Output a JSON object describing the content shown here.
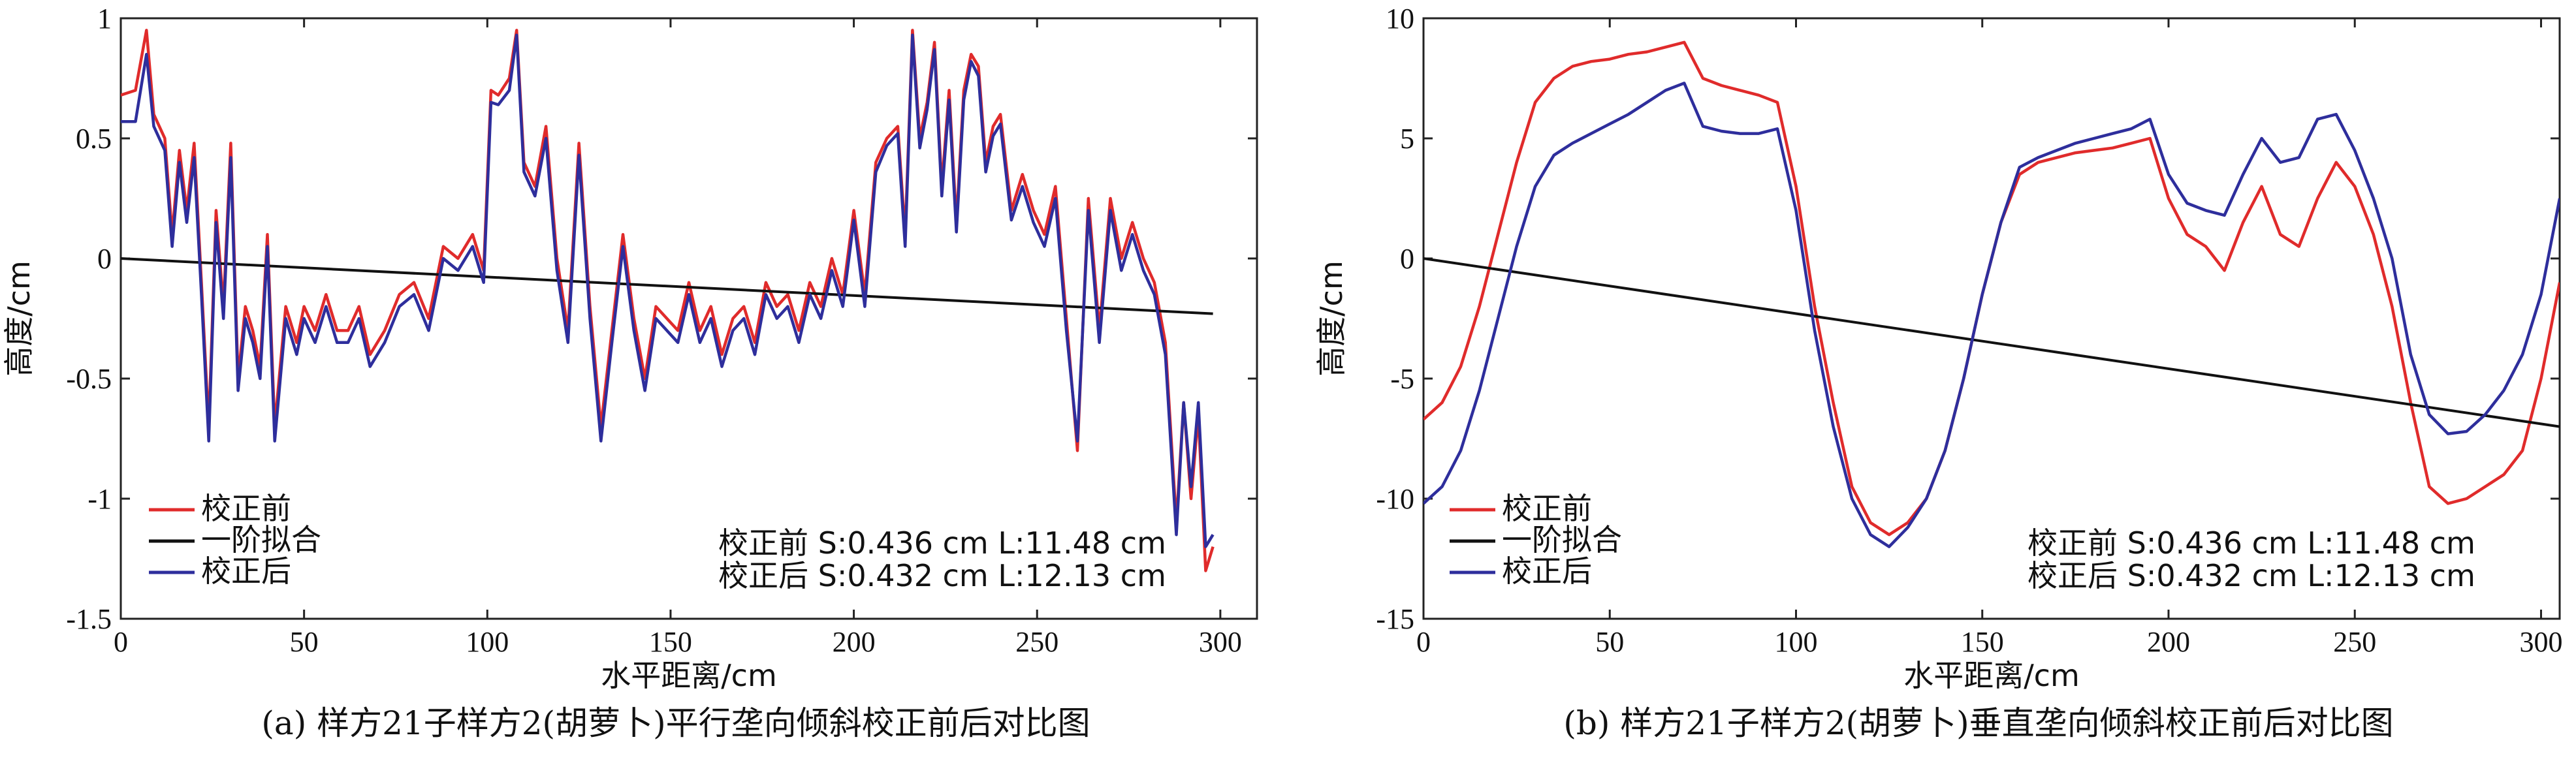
{
  "chart_data": [
    {
      "type": "line",
      "caption": "(a) 样方21子样方2(胡萝卜)平行垄向倾斜校正前后对比图",
      "xlabel": "水平距离/cm",
      "ylabel": "高度/cm",
      "xlim": [
        0,
        310
      ],
      "ylim": [
        -1.5,
        1
      ],
      "xticks": [
        0,
        50,
        100,
        150,
        200,
        250,
        300
      ],
      "yticks": [
        -1.5,
        -1,
        -0.5,
        0,
        0.5,
        1
      ],
      "xtick_labels": [
        "0",
        "50",
        "100",
        "150",
        "200",
        "250",
        "300"
      ],
      "ytick_labels": [
        "-1.5",
        "-1",
        "-0.5",
        "0",
        "0.5",
        "1"
      ],
      "legend_position": "bottom-left",
      "stats": [
        "校正前 S:0.436 cm L:11.48 cm",
        "校正后 S:0.432 cm L:12.13 cm"
      ],
      "series": [
        {
          "name": "校正前",
          "color": "#e02b2b",
          "x": [
            0,
            4,
            7,
            9,
            12,
            14,
            16,
            18,
            20,
            22,
            24,
            26,
            28,
            30,
            32,
            34,
            36,
            38,
            40,
            42,
            45,
            48,
            50,
            53,
            56,
            59,
            62,
            65,
            68,
            72,
            76,
            80,
            84,
            88,
            92,
            96,
            99,
            101,
            103,
            106,
            108,
            110,
            113,
            116,
            119,
            122,
            125,
            128,
            131,
            134,
            137,
            140,
            143,
            146,
            149,
            152,
            155,
            158,
            161,
            164,
            167,
            170,
            173,
            176,
            179,
            182,
            185,
            188,
            191,
            194,
            197,
            200,
            203,
            206,
            209,
            212,
            214,
            216,
            218,
            220,
            222,
            224,
            226,
            228,
            230,
            232,
            234,
            236,
            238,
            240,
            243,
            246,
            249,
            252,
            255,
            258,
            261,
            264,
            267,
            270,
            273,
            276,
            279,
            282,
            285,
            288,
            290,
            292,
            294,
            296,
            298
          ],
          "y": [
            0.68,
            0.7,
            0.95,
            0.6,
            0.5,
            0.1,
            0.45,
            0.2,
            0.48,
            -0.1,
            -0.7,
            0.2,
            -0.2,
            0.48,
            -0.5,
            -0.2,
            -0.3,
            -0.45,
            0.1,
            -0.7,
            -0.2,
            -0.35,
            -0.2,
            -0.3,
            -0.15,
            -0.3,
            -0.3,
            -0.2,
            -0.4,
            -0.3,
            -0.15,
            -0.1,
            -0.25,
            0.05,
            0.0,
            0.1,
            -0.05,
            0.7,
            0.68,
            0.75,
            0.95,
            0.4,
            0.3,
            0.55,
            0.0,
            -0.3,
            0.48,
            -0.2,
            -0.7,
            -0.3,
            0.1,
            -0.25,
            -0.5,
            -0.2,
            -0.25,
            -0.3,
            -0.1,
            -0.3,
            -0.2,
            -0.4,
            -0.25,
            -0.2,
            -0.35,
            -0.1,
            -0.2,
            -0.15,
            -0.3,
            -0.1,
            -0.2,
            0.0,
            -0.15,
            0.2,
            -0.15,
            0.4,
            0.5,
            0.55,
            0.1,
            0.95,
            0.5,
            0.65,
            0.9,
            0.3,
            0.7,
            0.15,
            0.7,
            0.85,
            0.8,
            0.4,
            0.55,
            0.6,
            0.2,
            0.35,
            0.2,
            0.1,
            0.3,
            -0.25,
            -0.8,
            0.25,
            -0.3,
            0.25,
            0.0,
            0.15,
            0.0,
            -0.1,
            -0.35,
            -1.1,
            -0.6,
            -1.0,
            -0.65,
            -1.3,
            -1.2
          ]
        },
        {
          "name": "一阶拟合",
          "color": "#111111",
          "x": [
            0,
            298
          ],
          "y": [
            0,
            -0.23
          ]
        },
        {
          "name": "校正后",
          "color": "#2e2e9c",
          "x": [
            0,
            4,
            7,
            9,
            12,
            14,
            16,
            18,
            20,
            22,
            24,
            26,
            28,
            30,
            32,
            34,
            36,
            38,
            40,
            42,
            45,
            48,
            50,
            53,
            56,
            59,
            62,
            65,
            68,
            72,
            76,
            80,
            84,
            88,
            92,
            96,
            99,
            101,
            103,
            106,
            108,
            110,
            113,
            116,
            119,
            122,
            125,
            128,
            131,
            134,
            137,
            140,
            143,
            146,
            149,
            152,
            155,
            158,
            161,
            164,
            167,
            170,
            173,
            176,
            179,
            182,
            185,
            188,
            191,
            194,
            197,
            200,
            203,
            206,
            209,
            212,
            214,
            216,
            218,
            220,
            222,
            224,
            226,
            228,
            230,
            232,
            234,
            236,
            238,
            240,
            243,
            246,
            249,
            252,
            255,
            258,
            261,
            264,
            267,
            270,
            273,
            276,
            279,
            282,
            285,
            288,
            290,
            292,
            294,
            296,
            298
          ],
          "y": [
            0.57,
            0.57,
            0.85,
            0.55,
            0.45,
            0.05,
            0.4,
            0.15,
            0.42,
            -0.15,
            -0.76,
            0.15,
            -0.25,
            0.42,
            -0.55,
            -0.25,
            -0.35,
            -0.5,
            0.05,
            -0.76,
            -0.25,
            -0.4,
            -0.25,
            -0.35,
            -0.2,
            -0.35,
            -0.35,
            -0.25,
            -0.45,
            -0.35,
            -0.2,
            -0.15,
            -0.3,
            0.0,
            -0.05,
            0.05,
            -0.1,
            0.65,
            0.64,
            0.7,
            0.93,
            0.36,
            0.26,
            0.5,
            -0.05,
            -0.35,
            0.43,
            -0.25,
            -0.76,
            -0.35,
            0.05,
            -0.3,
            -0.55,
            -0.25,
            -0.3,
            -0.35,
            -0.15,
            -0.35,
            -0.25,
            -0.45,
            -0.3,
            -0.25,
            -0.4,
            -0.15,
            -0.25,
            -0.2,
            -0.35,
            -0.15,
            -0.25,
            -0.05,
            -0.2,
            0.16,
            -0.2,
            0.36,
            0.47,
            0.52,
            0.05,
            0.93,
            0.46,
            0.62,
            0.87,
            0.26,
            0.66,
            0.11,
            0.66,
            0.82,
            0.76,
            0.36,
            0.51,
            0.56,
            0.16,
            0.3,
            0.15,
            0.05,
            0.25,
            -0.3,
            -0.76,
            0.2,
            -0.35,
            0.2,
            -0.05,
            0.1,
            -0.05,
            -0.15,
            -0.4,
            -1.15,
            -0.6,
            -0.95,
            -0.6,
            -1.2,
            -1.15
          ]
        }
      ]
    },
    {
      "type": "line",
      "caption": "(b) 样方21子样方2(胡萝卜)垂直垄向倾斜校正前后对比图",
      "xlabel": "水平距离/cm",
      "ylabel": "高度/cm",
      "xlim": [
        0,
        305
      ],
      "ylim": [
        -15,
        10
      ],
      "xticks": [
        0,
        50,
        100,
        150,
        200,
        250,
        300
      ],
      "yticks": [
        -15,
        -10,
        -5,
        0,
        5,
        10
      ],
      "xtick_labels": [
        "0",
        "50",
        "100",
        "150",
        "200",
        "250",
        "300"
      ],
      "ytick_labels": [
        "-15",
        "-10",
        "-5",
        "0",
        "5",
        "10"
      ],
      "legend_position": "bottom-left",
      "stats": [
        "校正前 S:0.436 cm L:11.48 cm",
        "校正后 S:0.432 cm L:12.13 cm"
      ],
      "series": [
        {
          "name": "校正前",
          "color": "#e02b2b",
          "x": [
            0,
            5,
            10,
            15,
            20,
            25,
            30,
            35,
            40,
            45,
            50,
            55,
            60,
            65,
            70,
            75,
            80,
            85,
            90,
            95,
            100,
            105,
            110,
            115,
            120,
            125,
            130,
            135,
            140,
            145,
            150,
            155,
            160,
            165,
            170,
            175,
            180,
            185,
            190,
            195,
            200,
            205,
            210,
            215,
            220,
            225,
            230,
            235,
            240,
            245,
            250,
            255,
            260,
            265,
            270,
            275,
            280,
            285,
            290,
            295,
            300,
            305
          ],
          "y": [
            -6.7,
            -6.0,
            -4.5,
            -2.0,
            1.0,
            4.0,
            6.5,
            7.5,
            8.0,
            8.2,
            8.3,
            8.5,
            8.6,
            8.8,
            9.0,
            7.5,
            7.2,
            7.0,
            6.8,
            6.5,
            3.0,
            -2.0,
            -6.0,
            -9.5,
            -11.0,
            -11.5,
            -11.0,
            -10.0,
            -8.0,
            -5.0,
            -1.5,
            1.5,
            3.5,
            4.0,
            4.2,
            4.4,
            4.5,
            4.6,
            4.8,
            5.0,
            2.5,
            1.0,
            0.5,
            -0.5,
            1.5,
            3.0,
            1.0,
            0.5,
            2.5,
            4.0,
            3.0,
            1.0,
            -2.0,
            -6.0,
            -9.5,
            -10.2,
            -10.0,
            -9.5,
            -9.0,
            -8.0,
            -5.0,
            -1.0
          ]
        },
        {
          "name": "一阶拟合",
          "color": "#111111",
          "x": [
            0,
            305
          ],
          "y": [
            0,
            -7
          ]
        },
        {
          "name": "校正后",
          "color": "#2e2e9c",
          "x": [
            0,
            5,
            10,
            15,
            20,
            25,
            30,
            35,
            40,
            45,
            50,
            55,
            60,
            65,
            70,
            75,
            80,
            85,
            90,
            95,
            100,
            105,
            110,
            115,
            120,
            125,
            130,
            135,
            140,
            145,
            150,
            155,
            160,
            165,
            170,
            175,
            180,
            185,
            190,
            195,
            200,
            205,
            210,
            215,
            220,
            225,
            230,
            235,
            240,
            245,
            250,
            255,
            260,
            265,
            270,
            275,
            280,
            285,
            290,
            295,
            300,
            305
          ],
          "y": [
            -10.2,
            -9.5,
            -8.0,
            -5.5,
            -2.5,
            0.5,
            3.0,
            4.3,
            4.8,
            5.2,
            5.6,
            6.0,
            6.5,
            7.0,
            7.3,
            5.5,
            5.3,
            5.2,
            5.2,
            5.4,
            2.0,
            -3.0,
            -7.0,
            -10.0,
            -11.5,
            -12.0,
            -11.2,
            -10.0,
            -8.0,
            -5.0,
            -1.5,
            1.5,
            3.8,
            4.2,
            4.5,
            4.8,
            5.0,
            5.2,
            5.4,
            5.8,
            3.5,
            2.3,
            2.0,
            1.8,
            3.5,
            5.0,
            4.0,
            4.2,
            5.8,
            6.0,
            4.5,
            2.5,
            0.0,
            -4.0,
            -6.5,
            -7.3,
            -7.2,
            -6.5,
            -5.5,
            -4.0,
            -1.5,
            2.5
          ]
        }
      ]
    }
  ]
}
